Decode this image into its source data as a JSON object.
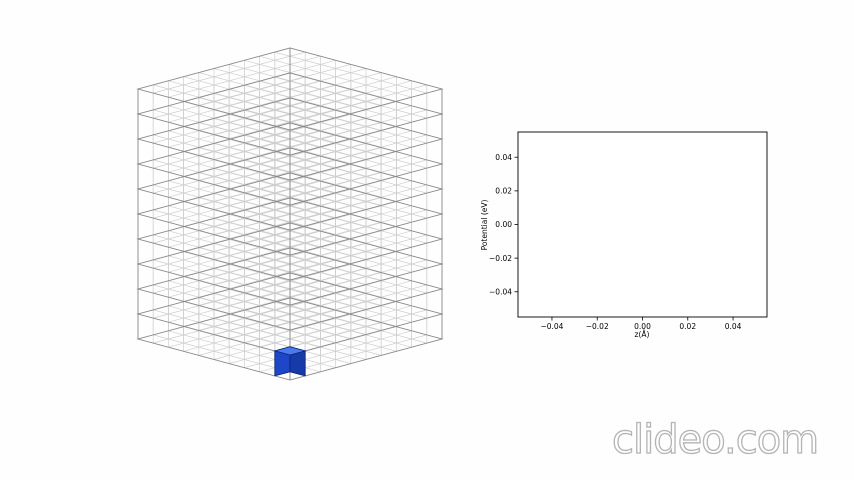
{
  "colors": {
    "grid_fine": "#cfcfcf",
    "grid_major": "#8a8a8a",
    "cube_front": "#1e46c8",
    "cube_side": "#163aa8",
    "cube_top": "#4a78ee",
    "cube_edge": "#0b2270",
    "axes": "#000000"
  },
  "scene": {
    "grid_divisions": 10,
    "marked_cell": [
      0,
      0,
      0
    ]
  },
  "chart_data": {
    "type": "line",
    "title": "",
    "xlabel": "z(Å)",
    "ylabel": "Potential (eV)",
    "xlim": [
      -0.055,
      0.055
    ],
    "ylim": [
      -0.055,
      0.055
    ],
    "xticks": [
      "−0.04",
      "−0.02",
      "0.00",
      "0.02",
      "0.04"
    ],
    "yticks": [
      "0.04",
      "0.02",
      "0.00",
      "−0.02",
      "−0.04"
    ],
    "xtick_values": [
      -0.04,
      -0.02,
      0.0,
      0.02,
      0.04
    ],
    "ytick_values": [
      0.04,
      0.02,
      0.0,
      -0.02,
      -0.04
    ],
    "series": [],
    "grid": false
  },
  "watermark": {
    "text": "clideo.com"
  }
}
